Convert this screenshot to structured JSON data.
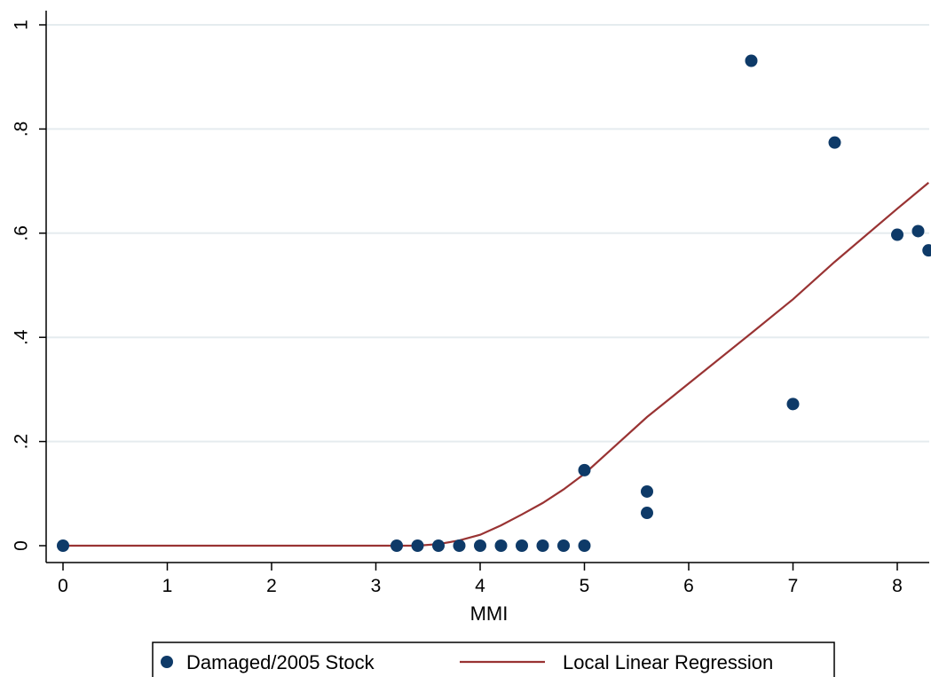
{
  "chart_data": {
    "type": "scatter",
    "title": "",
    "xlabel": "MMI",
    "ylabel": "",
    "xlim": [
      0,
      8.3
    ],
    "ylim": [
      0,
      1
    ],
    "x_ticks": [
      0,
      1,
      2,
      3,
      4,
      5,
      6,
      7,
      8
    ],
    "y_ticks": [
      0,
      0.2,
      0.4,
      0.6,
      0.8,
      1
    ],
    "y_tick_labels": [
      "0",
      ".2",
      ".4",
      ".6",
      ".8",
      "1"
    ],
    "grid": "horizontal",
    "legend_position": "bottom",
    "colors": {
      "scatter": "#0e3a68",
      "line": "#993333",
      "grid": "#e5ecef"
    },
    "series": [
      {
        "name": "Damaged/2005 Stock",
        "kind": "scatter",
        "points": [
          [
            0,
            0
          ],
          [
            3.2,
            0
          ],
          [
            3.4,
            0
          ],
          [
            3.6,
            0
          ],
          [
            3.8,
            0
          ],
          [
            4.0,
            0
          ],
          [
            4.2,
            0
          ],
          [
            4.4,
            0
          ],
          [
            4.6,
            0
          ],
          [
            4.8,
            0
          ],
          [
            5.0,
            0
          ],
          [
            5.0,
            0.145
          ],
          [
            5.6,
            0.104
          ],
          [
            5.6,
            0.063
          ],
          [
            6.6,
            0.931
          ],
          [
            7.0,
            0.272
          ],
          [
            7.4,
            0.774
          ],
          [
            8.0,
            0.597
          ],
          [
            8.2,
            0.604
          ],
          [
            8.3,
            0.567
          ]
        ]
      },
      {
        "name": "Local Linear Regression",
        "kind": "line",
        "points": [
          [
            0,
            0
          ],
          [
            3.4,
            0
          ],
          [
            3.6,
            0.003
          ],
          [
            3.8,
            0.01
          ],
          [
            4.0,
            0.021
          ],
          [
            4.2,
            0.039
          ],
          [
            4.4,
            0.06
          ],
          [
            4.6,
            0.082
          ],
          [
            4.8,
            0.108
          ],
          [
            5.0,
            0.138
          ],
          [
            5.6,
            0.247
          ],
          [
            6.6,
            0.408
          ],
          [
            7.0,
            0.473
          ],
          [
            7.4,
            0.545
          ],
          [
            8.0,
            0.647
          ],
          [
            8.3,
            0.697
          ]
        ]
      }
    ]
  }
}
